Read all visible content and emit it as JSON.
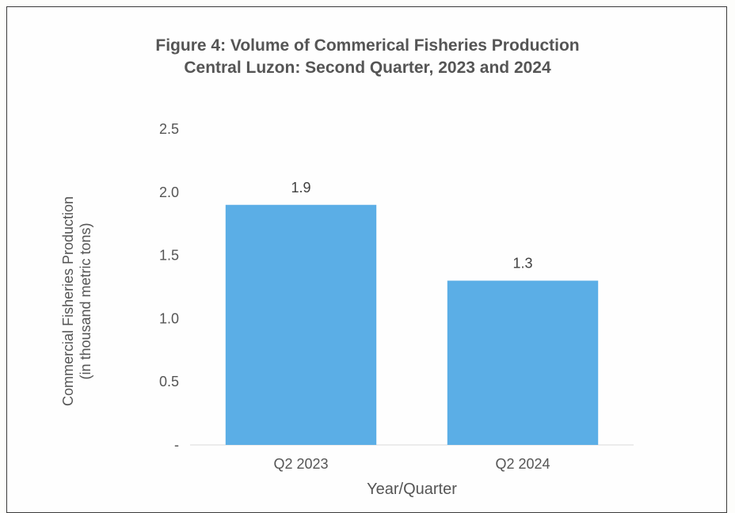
{
  "chart_data": {
    "type": "bar",
    "title": "Figure 4: Volume of Commerical Fisheries Production",
    "subtitle": "Central Luzon: Second Quarter, 2023 and 2024",
    "categories": [
      "Q2 2023",
      "Q2 2024"
    ],
    "values": [
      1.9,
      1.3
    ],
    "data_labels": [
      "1.9",
      "1.3"
    ],
    "xlabel": "Year/Quarter",
    "ylabel": "Commercial Fisheries Production",
    "ylabel_sub": "(in thousand metric tons)",
    "ylim": [
      0,
      2.5
    ],
    "yticks": [
      {
        "value": 0,
        "label": "-"
      },
      {
        "value": 0.5,
        "label": "0.5"
      },
      {
        "value": 1.0,
        "label": "1.0"
      },
      {
        "value": 1.5,
        "label": "1.5"
      },
      {
        "value": 2.0,
        "label": "2.0"
      },
      {
        "value": 2.5,
        "label": "2.5"
      }
    ],
    "grid": false,
    "legend": "none",
    "bar_color": "#5baee6"
  }
}
